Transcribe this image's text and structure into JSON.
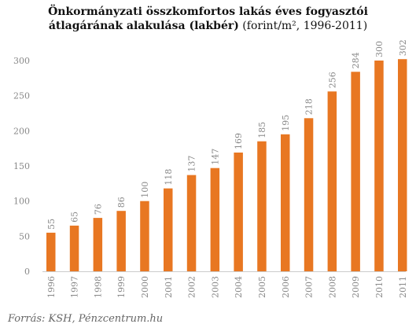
{
  "title": {
    "line1": "Önkormányzati összkomfortos lakás éves fogyasztói",
    "line2_bold": "átlagárának alakulása (lakbér)",
    "line2_unit": " (forint/m², 1996-2011)"
  },
  "source": "Forrás: KSH, Pénzcentrum.hu",
  "colors": {
    "bar": "#e87722",
    "axis": "#cccccc"
  },
  "chart_data": {
    "type": "bar",
    "categories": [
      "1996",
      "1997",
      "1998",
      "1999",
      "2000",
      "2001",
      "2002",
      "2003",
      "2004",
      "2005",
      "2006",
      "2007",
      "2008",
      "2009",
      "2010",
      "2011"
    ],
    "values": [
      55,
      65,
      76,
      86,
      100,
      118,
      137,
      147,
      169,
      185,
      195,
      218,
      256,
      284,
      300,
      302
    ],
    "yticks": [
      0,
      50,
      100,
      150,
      200,
      250,
      300
    ],
    "ylim": [
      0,
      300
    ],
    "grid": false
  }
}
